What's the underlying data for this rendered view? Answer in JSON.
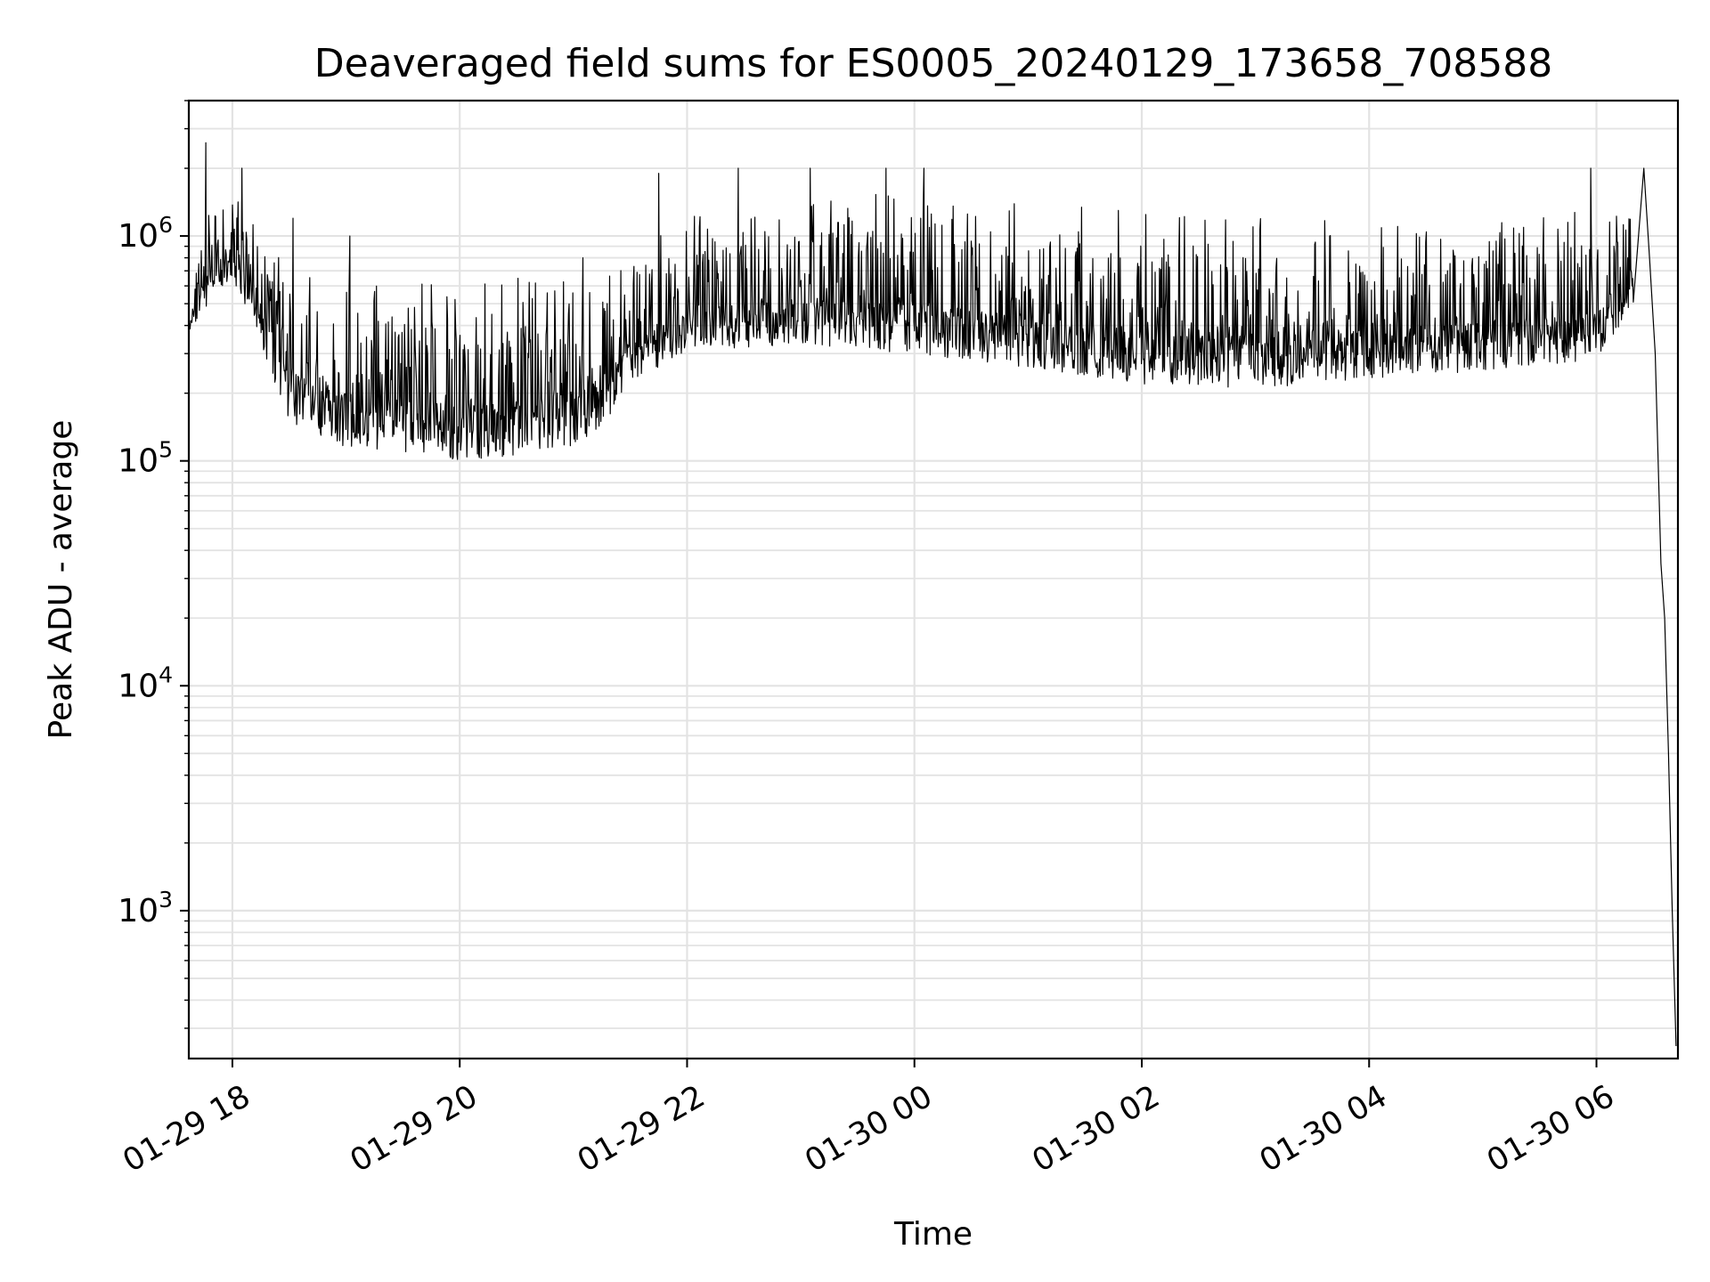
{
  "chart_data": {
    "type": "line",
    "title": "Deaveraged field sums for ES0005_20240129_173658_708588",
    "xlabel": "Time",
    "ylabel": "Peak ADU - average",
    "x_range": [
      "2024-01-29 17:37",
      "2024-01-30 06:43"
    ],
    "ylim": [
      220,
      4000000
    ],
    "yscale": "log",
    "grid": true,
    "x_ticks": [
      "01-29 18",
      "01-29 20",
      "01-29 22",
      "01-30 00",
      "01-30 02",
      "01-30 04",
      "01-30 06"
    ],
    "x_tick_times": [
      "2024-01-29 18:00",
      "2024-01-29 20:00",
      "2024-01-29 22:00",
      "2024-01-30 00:00",
      "2024-01-30 02:00",
      "2024-01-30 04:00",
      "2024-01-30 06:00"
    ],
    "y_ticks": [
      {
        "base": "10",
        "exp": "3",
        "value": 1000
      },
      {
        "base": "10",
        "exp": "4",
        "value": 10000
      },
      {
        "base": "10",
        "exp": "5",
        "value": 100000
      },
      {
        "base": "10",
        "exp": "6",
        "value": 1000000
      }
    ],
    "series": [
      {
        "color": "#000000",
        "envelope": [
          {
            "t": "2024-01-29 17:37",
            "low": 380000,
            "high": 480000
          },
          {
            "t": "2024-01-29 17:45",
            "low": 450000,
            "high": 1200000
          },
          {
            "t": "2024-01-29 17:50",
            "low": 600000,
            "high": 1600000
          },
          {
            "t": "2024-01-29 18:00",
            "low": 600000,
            "high": 1500000
          },
          {
            "t": "2024-01-29 18:10",
            "low": 450000,
            "high": 1300000
          },
          {
            "t": "2024-01-29 18:20",
            "low": 250000,
            "high": 1000000
          },
          {
            "t": "2024-01-29 18:30",
            "low": 150000,
            "high": 700000
          },
          {
            "t": "2024-01-29 19:00",
            "low": 115000,
            "high": 650000
          },
          {
            "t": "2024-01-29 19:30",
            "low": 110000,
            "high": 650000
          },
          {
            "t": "2024-01-29 20:00",
            "low": 100000,
            "high": 600000
          },
          {
            "t": "2024-01-29 20:30",
            "low": 105000,
            "high": 650000
          },
          {
            "t": "2024-01-29 21:00",
            "low": 115000,
            "high": 650000
          },
          {
            "t": "2024-01-29 21:15",
            "low": 140000,
            "high": 700000
          },
          {
            "t": "2024-01-29 21:30",
            "low": 220000,
            "high": 900000
          },
          {
            "t": "2024-01-29 22:00",
            "low": 300000,
            "high": 1200000
          },
          {
            "t": "2024-01-29 22:30",
            "low": 320000,
            "high": 1500000
          },
          {
            "t": "2024-01-29 23:00",
            "low": 320000,
            "high": 1600000
          },
          {
            "t": "2024-01-30 00:00",
            "low": 300000,
            "high": 1500000
          },
          {
            "t": "2024-01-30 01:00",
            "low": 260000,
            "high": 1400000
          },
          {
            "t": "2024-01-30 02:00",
            "low": 220000,
            "high": 1300000
          },
          {
            "t": "2024-01-30 03:00",
            "low": 210000,
            "high": 1200000
          },
          {
            "t": "2024-01-30 04:00",
            "low": 230000,
            "high": 1200000
          },
          {
            "t": "2024-01-30 05:00",
            "low": 250000,
            "high": 1200000
          },
          {
            "t": "2024-01-30 06:00",
            "low": 280000,
            "high": 1300000
          },
          {
            "t": "2024-01-30 06:20",
            "low": 500000,
            "high": 1200000
          }
        ],
        "peaks": [
          {
            "t": "2024-01-29 17:46",
            "value": 2600000
          },
          {
            "t": "2024-01-29 18:05",
            "value": 2000000
          },
          {
            "t": "2024-01-29 18:32",
            "value": 1200000
          },
          {
            "t": "2024-01-29 19:02",
            "value": 1000000
          },
          {
            "t": "2024-01-29 21:05",
            "value": 800000
          },
          {
            "t": "2024-01-29 21:45",
            "value": 1900000
          },
          {
            "t": "2024-01-29 22:27",
            "value": 2000000
          },
          {
            "t": "2024-01-29 23:05",
            "value": 2000000
          },
          {
            "t": "2024-01-29 23:45",
            "value": 2000000
          },
          {
            "t": "2024-01-30 00:05",
            "value": 2000000
          },
          {
            "t": "2024-01-30 05:57",
            "value": 2000000
          },
          {
            "t": "2024-01-30 06:25",
            "value": 2000000
          }
        ],
        "tail": [
          {
            "t": "2024-01-30 06:28",
            "value": 800000
          },
          {
            "t": "2024-01-30 06:31",
            "value": 300000
          },
          {
            "t": "2024-01-30 06:34",
            "value": 35000
          },
          {
            "t": "2024-01-30 06:36",
            "value": 20000
          },
          {
            "t": "2024-01-30 06:38",
            "value": 5000
          },
          {
            "t": "2024-01-30 06:40",
            "value": 1000
          },
          {
            "t": "2024-01-30 06:42",
            "value": 250
          }
        ]
      }
    ]
  }
}
